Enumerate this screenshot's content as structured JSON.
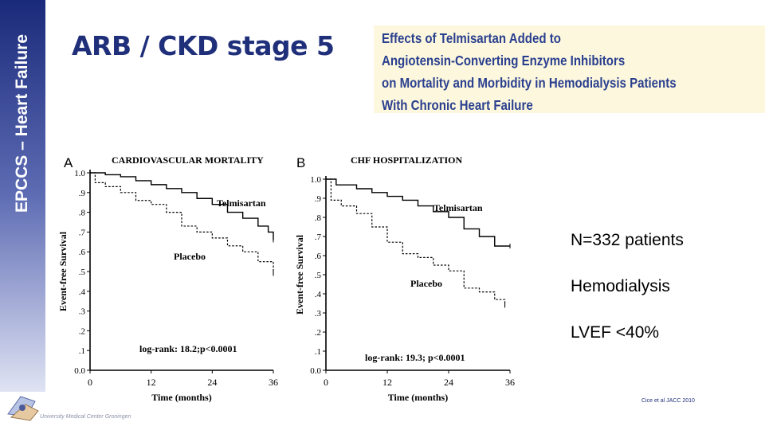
{
  "slide": {
    "sidebar_label": "EPCCS – Heart Failure",
    "title": "ARB / CKD stage 5",
    "logo_text": "University Medical Center Groningen",
    "citation": "Cice et al JACC 2010",
    "accent_color": "#1f2f7a",
    "paper_title_color": "#2a3f8f",
    "paper_box_color": "#fdf8dd"
  },
  "paper_title": {
    "lines": [
      "Effects of Telmisartan Added to",
      "Angiotensin-Converting Enzyme Inhibitors",
      "on Mortality and Morbidity in Hemodialysis Patients",
      "With Chronic Heart Failure"
    ]
  },
  "bullets": [
    "N=332 patients",
    "Hemodialysis",
    "LVEF <40%"
  ],
  "chart_data": [
    {
      "type": "line",
      "panel_letter": "A",
      "title": "CARDIOVASCULAR MORTALITY",
      "xlabel": "Time (months)",
      "ylabel": "Event-free Survival",
      "xlim": [
        0,
        36
      ],
      "ylim": [
        0,
        1
      ],
      "xticks": [
        "0",
        "12",
        "24",
        "36"
      ],
      "yticks": [
        "0.0",
        ".1",
        ".2",
        ".3",
        ".4",
        ".5",
        ".6",
        ".7",
        ".8",
        ".9",
        "1.0"
      ],
      "annotation": "log-rank: 18.2;p<0.0001",
      "series": [
        {
          "name": "Telmisartan",
          "style": "solid",
          "x": [
            0,
            3,
            6,
            9,
            12,
            15,
            18,
            21,
            24,
            27,
            30,
            33,
            35,
            36
          ],
          "y": [
            1.0,
            0.99,
            0.98,
            0.96,
            0.94,
            0.92,
            0.9,
            0.87,
            0.84,
            0.8,
            0.77,
            0.73,
            0.7,
            0.66
          ]
        },
        {
          "name": "Placebo",
          "style": "dashed",
          "x": [
            0,
            1,
            3,
            6,
            9,
            12,
            15,
            18,
            21,
            24,
            27,
            30,
            33,
            36
          ],
          "y": [
            1.0,
            0.95,
            0.93,
            0.9,
            0.86,
            0.84,
            0.8,
            0.73,
            0.7,
            0.67,
            0.63,
            0.6,
            0.55,
            0.49
          ]
        }
      ]
    },
    {
      "type": "line",
      "panel_letter": "B",
      "title": "CHF HOSPITALIZATION",
      "xlabel": "Time (months)",
      "ylabel": "Event-free Survival",
      "xlim": [
        0,
        36
      ],
      "ylim": [
        0,
        1
      ],
      "xticks": [
        "0",
        "12",
        "24",
        "36"
      ],
      "yticks": [
        "0.0",
        ".1",
        ".2",
        ".3",
        ".4",
        ".5",
        ".6",
        ".7",
        ".8",
        ".9",
        "1.0"
      ],
      "annotation": "log-rank: 19.3; p<0.0001",
      "series": [
        {
          "name": "Telmisartan",
          "style": "solid",
          "x": [
            0,
            2,
            6,
            9,
            12,
            15,
            18,
            21,
            24,
            27,
            30,
            33,
            36
          ],
          "y": [
            1.0,
            0.97,
            0.95,
            0.93,
            0.91,
            0.89,
            0.86,
            0.83,
            0.8,
            0.74,
            0.7,
            0.65,
            0.65
          ]
        },
        {
          "name": "Placebo",
          "style": "dashed",
          "x": [
            0,
            1,
            3,
            6,
            9,
            12,
            15,
            18,
            21,
            24,
            27,
            30,
            33,
            35
          ],
          "y": [
            1.0,
            0.89,
            0.86,
            0.82,
            0.75,
            0.67,
            0.61,
            0.59,
            0.55,
            0.52,
            0.43,
            0.41,
            0.37,
            0.34
          ]
        }
      ]
    }
  ]
}
